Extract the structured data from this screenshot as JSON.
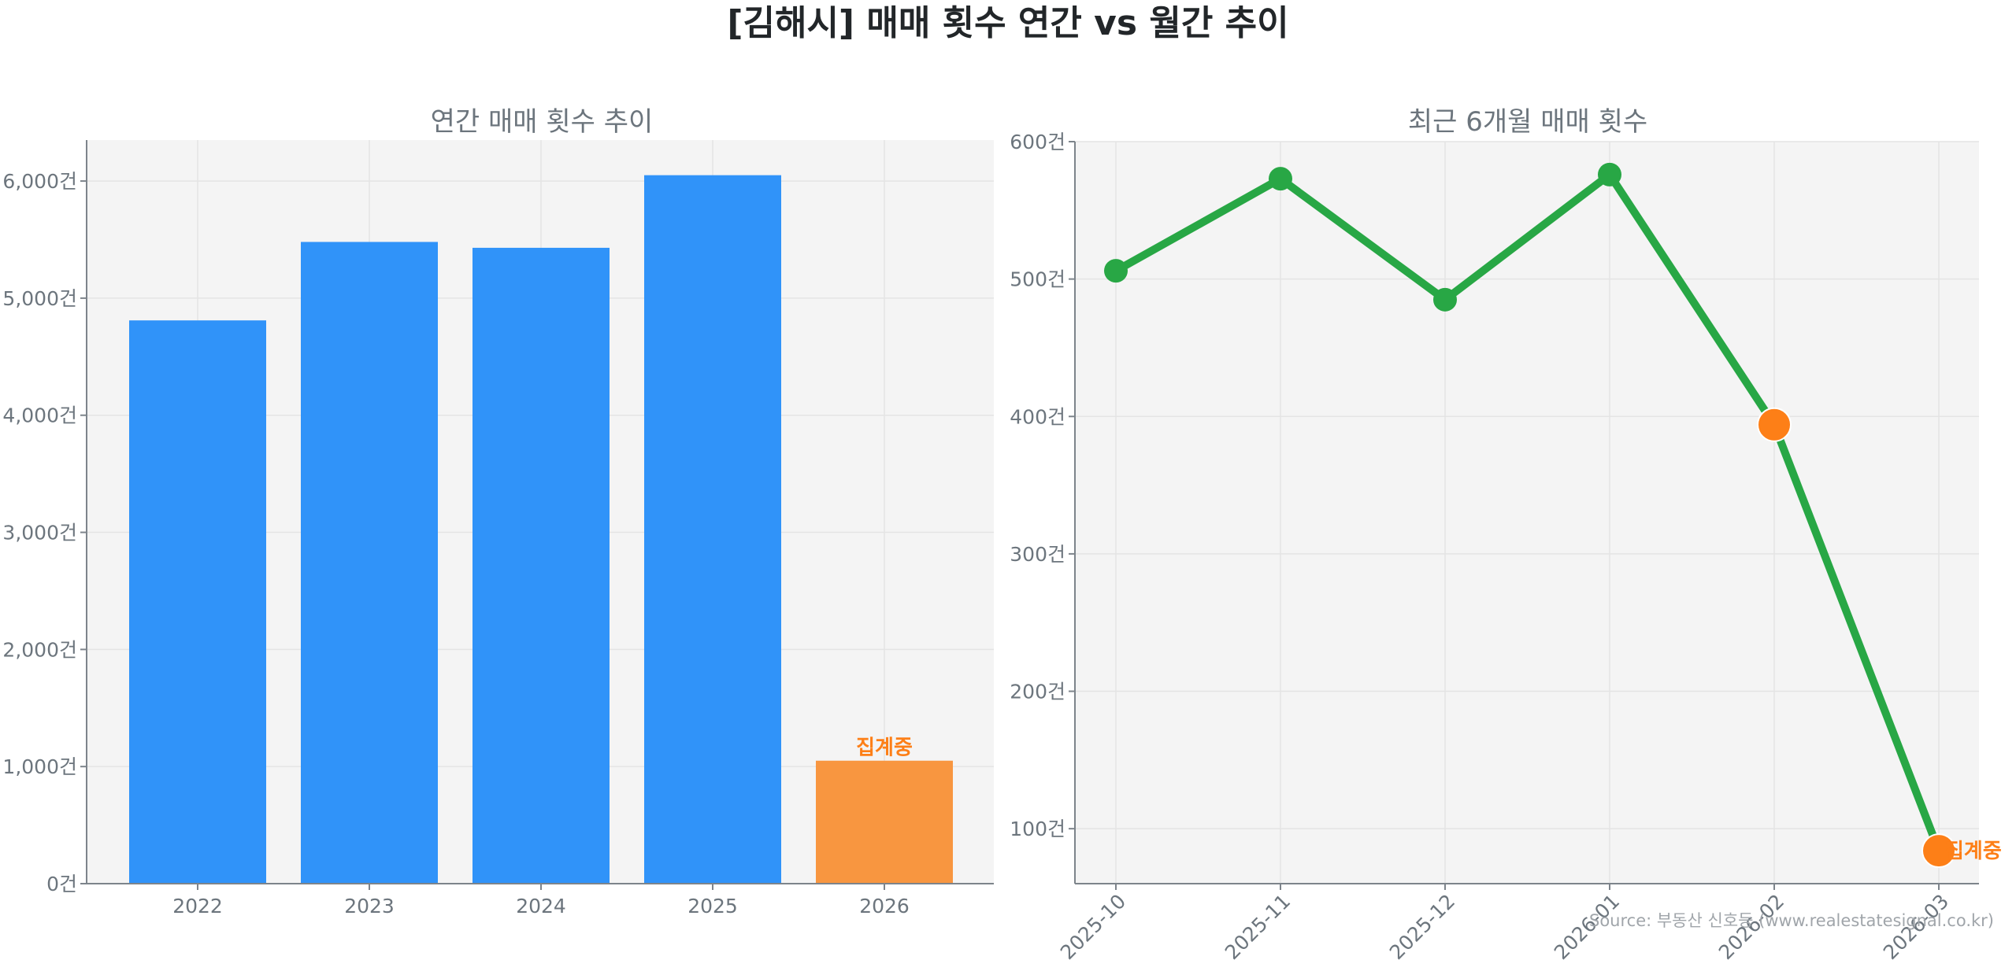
{
  "figure": {
    "title": "[김해시] 매매 횟수 연간 vs 월간 추이",
    "source": "Source: 부동산 신호등 (www.realestatesignal.co.kr)"
  },
  "colors": {
    "bar_blue": "#3093f9",
    "bar_orange": "#f89640",
    "line_green": "#28a745",
    "marker_orange": "#fd7f17",
    "plot_bg": "#f4f4f4",
    "axis_text": "#6c757d",
    "grid": "#e4e4e4"
  },
  "chart_data": [
    {
      "type": "bar",
      "title": "연간 매매 횟수 추이",
      "xlabel": "",
      "ylabel": "",
      "categories": [
        "2022",
        "2023",
        "2024",
        "2025",
        "2026"
      ],
      "values": [
        4810,
        5480,
        5430,
        6050,
        1050
      ],
      "bar_colors": [
        "#3093f9",
        "#3093f9",
        "#3093f9",
        "#3093f9",
        "#f89640"
      ],
      "ylim": [
        0,
        6350
      ],
      "yticks": [
        0,
        1000,
        2000,
        3000,
        4000,
        5000,
        6000
      ],
      "ytick_labels": [
        "0건",
        "1,000건",
        "2,000건",
        "3,000건",
        "4,000건",
        "5,000건",
        "6,000건"
      ],
      "annotations": [
        {
          "category": "2026",
          "text": "집계중",
          "color": "#fd7f17"
        }
      ],
      "grid": true
    },
    {
      "type": "line",
      "title": "최근 6개월 매매 횟수",
      "xlabel": "",
      "ylabel": "",
      "x": [
        "2025-10",
        "2025-11",
        "2025-12",
        "2026-01",
        "2026-02",
        "2026-03"
      ],
      "values": [
        506,
        573,
        485,
        576,
        394,
        84
      ],
      "marker_colors": [
        "#28a745",
        "#28a745",
        "#28a745",
        "#28a745",
        "#fd7f17",
        "#fd7f17"
      ],
      "ylim": [
        60,
        600
      ],
      "yticks": [
        100,
        200,
        300,
        400,
        500,
        600
      ],
      "ytick_labels": [
        "100건",
        "200건",
        "300건",
        "400건",
        "500건",
        "600건"
      ],
      "annotations": [
        {
          "x": "2026-03",
          "text": "집계중",
          "color": "#fd7f17"
        }
      ],
      "grid": true
    }
  ]
}
